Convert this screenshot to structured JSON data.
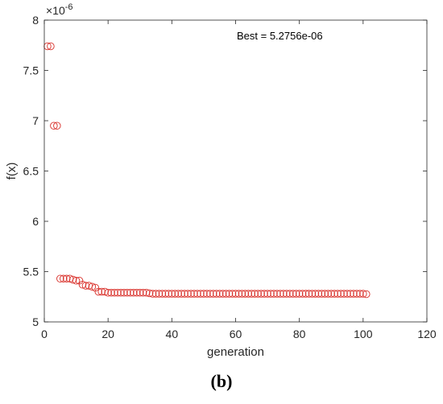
{
  "chart_data": {
    "type": "scatter",
    "xlabel": "generation",
    "ylabel": "f(x)",
    "xlim": [
      0,
      120
    ],
    "ylim": [
      5.0,
      8.0
    ],
    "y_exponent_label": "×10",
    "y_exponent": "-6",
    "xticks": [
      0,
      20,
      40,
      60,
      80,
      100,
      120
    ],
    "yticks": [
      5,
      5.5,
      6,
      6.5,
      7,
      7.5,
      8
    ],
    "ytick_labels": [
      "5",
      "5.5",
      "6",
      "6.5",
      "7",
      "7.5",
      "8"
    ],
    "grid": false,
    "marker": "open-circle",
    "marker_color": "#d9312b",
    "annotation": "Best = 5.2756e-06",
    "series": [
      {
        "x": [
          1,
          2,
          3,
          4,
          5,
          6,
          7,
          8,
          9,
          10,
          11,
          12,
          13,
          14,
          15,
          16,
          17,
          18,
          19,
          20,
          21,
          22,
          23,
          24,
          25,
          26,
          27,
          28,
          29,
          30,
          31,
          32,
          33,
          34,
          35,
          36,
          37,
          38,
          39,
          40,
          41,
          42,
          43,
          44,
          45,
          46,
          47,
          48,
          49,
          50,
          51,
          52,
          53,
          54,
          55,
          56,
          57,
          58,
          59,
          60,
          61,
          62,
          63,
          64,
          65,
          66,
          67,
          68,
          69,
          70,
          71,
          72,
          73,
          74,
          75,
          76,
          77,
          78,
          79,
          80,
          81,
          82,
          83,
          84,
          85,
          86,
          87,
          88,
          89,
          90,
          91,
          92,
          93,
          94,
          95,
          96,
          97,
          98,
          99,
          100,
          101
        ],
        "y": [
          7.74,
          7.74,
          6.95,
          6.95,
          5.43,
          5.43,
          5.43,
          5.43,
          5.42,
          5.41,
          5.41,
          5.37,
          5.36,
          5.36,
          5.35,
          5.34,
          5.3,
          5.3,
          5.3,
          5.29,
          5.29,
          5.29,
          5.29,
          5.29,
          5.29,
          5.29,
          5.29,
          5.29,
          5.29,
          5.29,
          5.29,
          5.29,
          5.285,
          5.28,
          5.28,
          5.28,
          5.28,
          5.28,
          5.28,
          5.28,
          5.28,
          5.28,
          5.28,
          5.28,
          5.28,
          5.28,
          5.28,
          5.28,
          5.28,
          5.28,
          5.28,
          5.28,
          5.28,
          5.28,
          5.28,
          5.28,
          5.28,
          5.28,
          5.28,
          5.28,
          5.28,
          5.28,
          5.28,
          5.28,
          5.28,
          5.28,
          5.28,
          5.28,
          5.28,
          5.28,
          5.28,
          5.28,
          5.28,
          5.28,
          5.28,
          5.28,
          5.28,
          5.28,
          5.28,
          5.28,
          5.28,
          5.28,
          5.28,
          5.28,
          5.28,
          5.28,
          5.28,
          5.28,
          5.28,
          5.28,
          5.28,
          5.28,
          5.28,
          5.28,
          5.28,
          5.28,
          5.28,
          5.28,
          5.28,
          5.28,
          5.276
        ]
      }
    ]
  },
  "caption": "(b)"
}
